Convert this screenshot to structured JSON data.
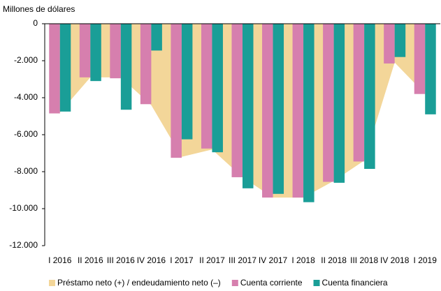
{
  "chart_data": {
    "type": "bar",
    "y_label": "Millones de dólares",
    "categories": [
      "I 2016",
      "II 2016",
      "III 2016",
      "IV 2016",
      "I 2017",
      "II 2017",
      "III 2017",
      "IV 2017",
      "I 2018",
      "II 2018",
      "III 2018",
      "IV 2018",
      "I 2019"
    ],
    "series": [
      {
        "name": "Préstamo neto (+) / endeudamiento neto (–)",
        "type": "area",
        "color": "#f3d699",
        "values": [
          -4800,
          -2900,
          -2900,
          -4400,
          -7200,
          -6800,
          -8300,
          -9400,
          -9400,
          -8500,
          -7400,
          -2100,
          -3800
        ]
      },
      {
        "name": "Cuenta corriente",
        "type": "bar",
        "color": "#d67fae",
        "values": [
          -4850,
          -2900,
          -2950,
          -4350,
          -7250,
          -6750,
          -8300,
          -9400,
          -9400,
          -8550,
          -7450,
          -2150,
          -3800
        ]
      },
      {
        "name": "Cuenta financiera",
        "type": "bar",
        "color": "#1a9e97",
        "values": [
          -4750,
          -3100,
          -4650,
          -1450,
          -6250,
          -6950,
          -8900,
          -9200,
          -9650,
          -8600,
          -7850,
          -1800,
          -4900
        ]
      }
    ],
    "ylim": [
      -12000,
      0
    ],
    "yticks": [
      0,
      {
        "value": -2000,
        "label": "-2.000"
      },
      {
        "value": -4000,
        "label": "-4.000"
      },
      {
        "value": -6000,
        "label": "-6.000"
      },
      {
        "value": -8000,
        "label": "-8.000"
      },
      {
        "value": -10000,
        "label": "-10.000"
      },
      {
        "value": -12000,
        "label": "-12.000"
      }
    ],
    "legend": "bottom"
  }
}
